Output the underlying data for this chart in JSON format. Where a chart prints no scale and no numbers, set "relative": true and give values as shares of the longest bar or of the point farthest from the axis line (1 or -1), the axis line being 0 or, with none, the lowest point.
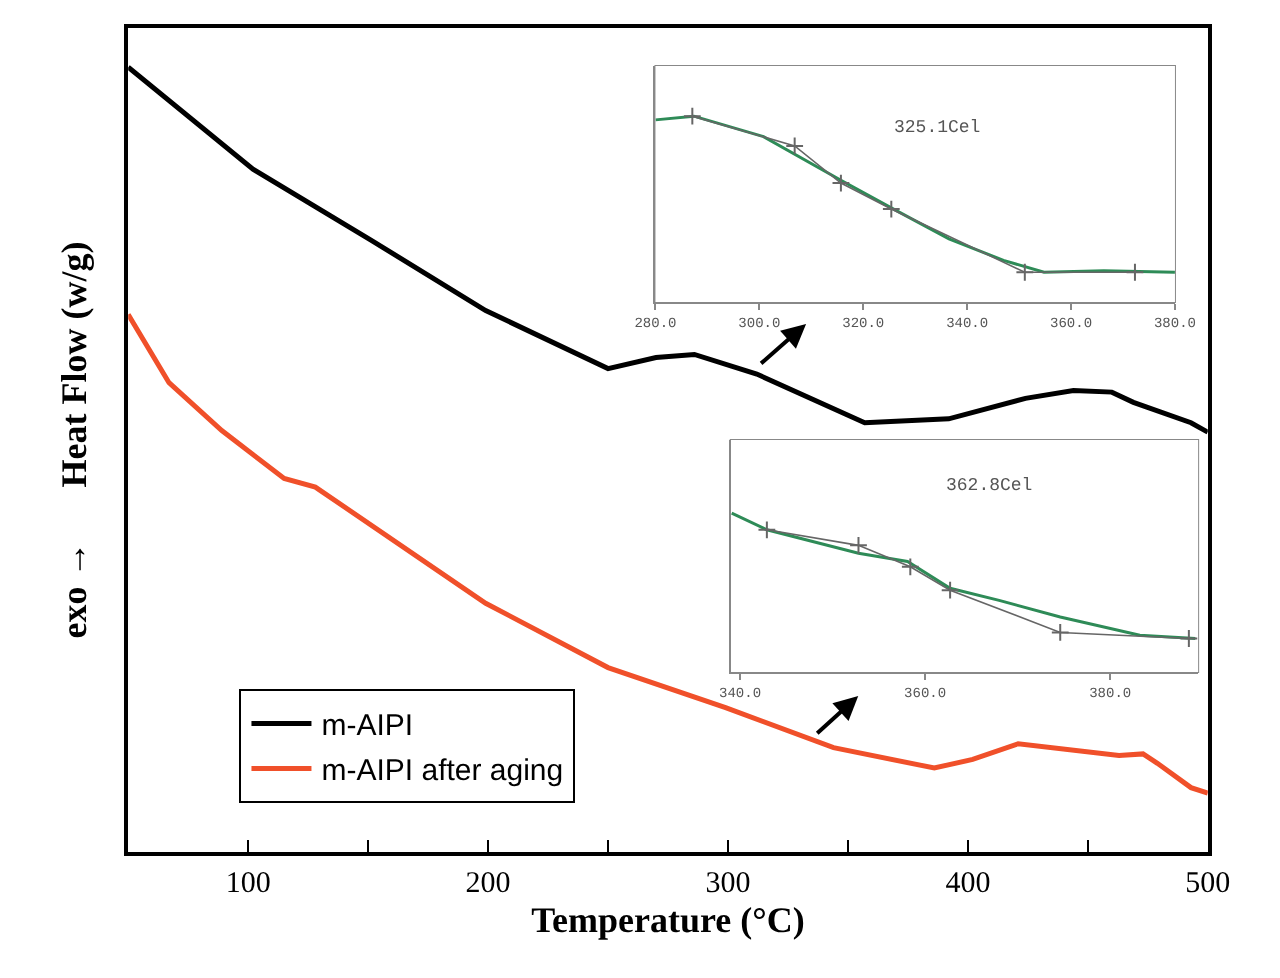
{
  "chart_data": [
    {
      "type": "line",
      "xlabel": "Temperature (°C)",
      "ylabel": "exo →      Heat Flow (w/g)",
      "relative": true,
      "xlim": [
        50,
        500
      ],
      "xticks": [
        100,
        {
          "value": 150,
          "label": null
        },
        200,
        {
          "value": 250,
          "label": null
        },
        300,
        {
          "value": 350,
          "label": null
        },
        400,
        {
          "value": 450,
          "label": null
        },
        500
      ],
      "legend": "bottom left",
      "grid": false,
      "marker": "none",
      "line_style": "solid",
      "series": [
        {
          "name": "m-AIPI",
          "color": "#000000",
          "x": [
            50,
            102,
            151,
            199,
            250,
            270,
            286,
            312,
            357,
            392,
            424,
            444,
            460,
            469,
            493,
            500
          ],
          "values": [
            1.0,
            0.87,
            0.78,
            0.69,
            0.616,
            0.63,
            0.634,
            0.609,
            0.547,
            0.552,
            0.578,
            0.588,
            0.586,
            0.573,
            0.547,
            0.535
          ]
        },
        {
          "name": "m-AIPI after aging",
          "color": "#f0502a",
          "x": [
            50,
            67,
            89,
            115,
            128,
            199,
            250,
            299,
            344,
            386,
            402,
            421,
            463,
            473,
            479,
            493,
            500
          ],
          "values": [
            0.685,
            0.598,
            0.537,
            0.476,
            0.465,
            0.317,
            0.235,
            0.184,
            0.133,
            0.107,
            0.118,
            0.138,
            0.123,
            0.125,
            0.113,
            0.082,
            0.075
          ]
        }
      ]
    },
    {
      "type": "line",
      "relative": true,
      "xlim": [
        280,
        380
      ],
      "xticks": [
        {
          "value": 280,
          "label": "280.0"
        },
        {
          "value": 300,
          "label": "300.0"
        },
        {
          "value": 320,
          "label": "320.0"
        },
        {
          "value": 340,
          "label": "340.0"
        },
        {
          "value": 360,
          "label": "360.0"
        },
        {
          "value": 380,
          "label": "380.0"
        }
      ],
      "annotations": [
        "325.1Cel"
      ],
      "grid": false,
      "series": [
        {
          "color": "#2e8b57",
          "x": [
            280,
            287.4,
            300.8,
            315.7,
            326.1,
            336.5,
            347,
            354.8,
            366.3,
            380
          ],
          "values": [
            0.98,
            1.0,
            0.89,
            0.655,
            0.496,
            0.34,
            0.224,
            0.16,
            0.168,
            0.16
          ]
        },
        {
          "color": "#666666",
          "marker": "cross",
          "x": [
            287.1,
            306.8,
            315.7,
            325.4,
            351.1,
            372.3
          ],
          "values": [
            1.0,
            0.84,
            0.64,
            0.5,
            0.16,
            0.16
          ]
        }
      ]
    },
    {
      "type": "line",
      "relative": true,
      "xlim": [
        339,
        389.5
      ],
      "xticks": [
        {
          "value": 340,
          "label": "340.0"
        },
        {
          "value": 360,
          "label": "360.0"
        },
        {
          "value": 380,
          "label": "380.0"
        }
      ],
      "annotations": [
        "362.8Cel"
      ],
      "grid": false,
      "series": [
        {
          "color": "#2e8b57",
          "x": [
            339.1,
            342.9,
            352.8,
            358.1,
            362.7,
            368,
            374.6,
            383.2,
            389.2
          ],
          "values": [
            1.0,
            0.895,
            0.747,
            0.696,
            0.527,
            0.451,
            0.346,
            0.232,
            0.211
          ]
        },
        {
          "color": "#666666",
          "marker": "cross",
          "x": [
            342.9,
            352.8,
            358.4,
            362.7,
            374.6,
            388.5
          ],
          "values": [
            0.895,
            0.797,
            0.662,
            0.515,
            0.249,
            0.211
          ]
        }
      ]
    }
  ]
}
